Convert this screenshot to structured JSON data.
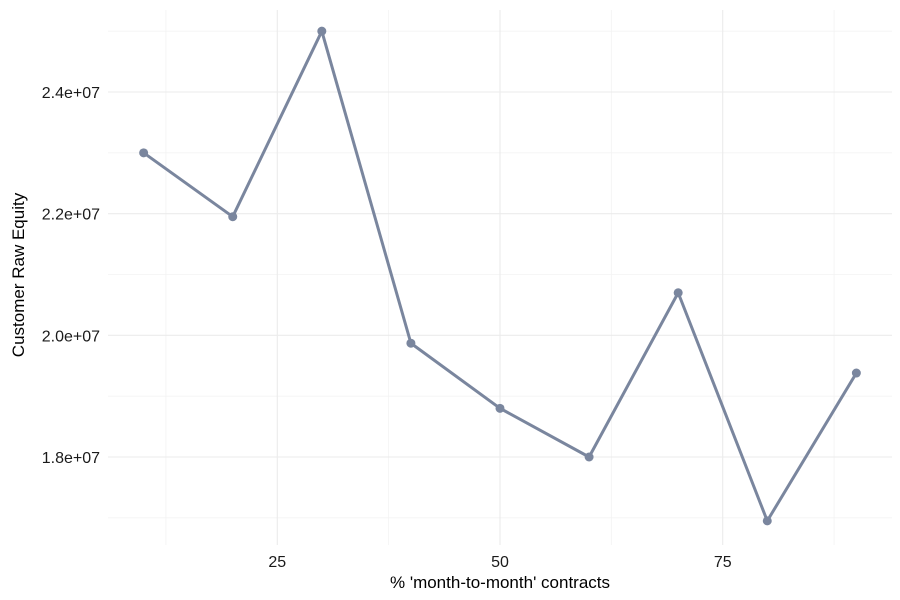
{
  "chart_data": {
    "type": "line",
    "xlabel": "% 'month-to-month' contracts",
    "ylabel": "Customer Raw Equity",
    "xlim": [
      6,
      94
    ],
    "ylim": [
      16800000,
      25000000
    ],
    "x_ticks": [
      25,
      50,
      75
    ],
    "x_tick_labels": [
      "25",
      "50",
      "75"
    ],
    "x_minor_ticks": [
      12.5,
      37.5,
      62.5,
      87.5
    ],
    "y_ticks": [
      18000000,
      20000000,
      22000000,
      24000000
    ],
    "y_tick_labels": [
      "1.8e+07",
      "2.0e+07",
      "2.2e+07",
      "2.4e+07"
    ],
    "y_minor_ticks": [
      17000000,
      19000000,
      21000000,
      23000000,
      25000000
    ],
    "grid": true,
    "series": [
      {
        "color": "#7a869e",
        "x": [
          10,
          20,
          30,
          40,
          50,
          60,
          70,
          80,
          90
        ],
        "y": [
          23000000,
          21950000,
          25000000,
          19870000,
          18800000,
          18000000,
          20700000,
          16950000,
          19380000
        ]
      }
    ]
  }
}
